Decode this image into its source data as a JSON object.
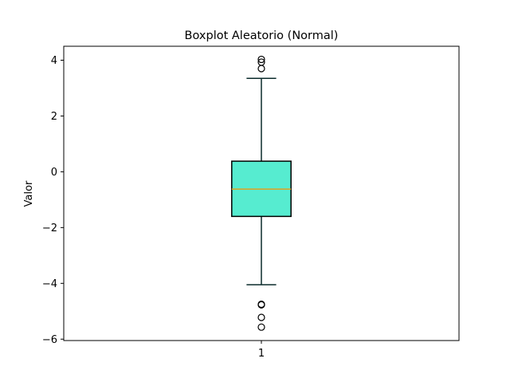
{
  "chart_data": {
    "type": "boxplot",
    "title": "Boxplot Aleatorio (Normal)",
    "xlabel": "",
    "ylabel": "Valor",
    "categories": [
      "1"
    ],
    "ylim": [
      -6.05,
      4.5
    ],
    "yticks": [
      -6,
      -4,
      -2,
      0,
      2,
      4
    ],
    "ytick_labels": [
      "−6",
      "−4",
      "−2",
      "0",
      "2",
      "4"
    ],
    "grid": false,
    "boxes": [
      {
        "category": "1",
        "whisker_low": -4.05,
        "q1": -1.6,
        "median": -0.62,
        "q3": 0.38,
        "whisker_high": 3.35,
        "outliers": [
          4.03,
          3.93,
          3.7,
          -4.75,
          -4.77,
          -5.22,
          -5.57
        ]
      }
    ],
    "colors": {
      "box_fill": "#56ecd0",
      "median": "#e0a020",
      "line": "#000000",
      "whisker": "#0b2b2b"
    }
  }
}
